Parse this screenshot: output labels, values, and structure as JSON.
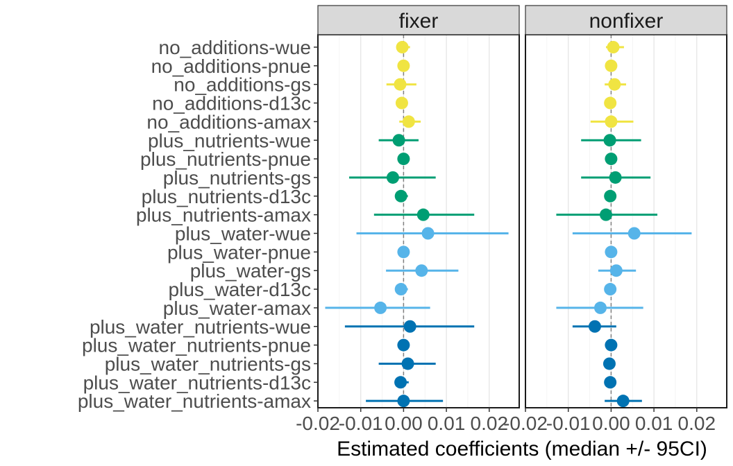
{
  "chart_data": {
    "type": "forest",
    "xlabel": "Estimated coefficients (median +/- 95CI)",
    "xlim": [
      -0.02,
      0.027
    ],
    "x_ticks": [
      -0.02,
      -0.01,
      0.0,
      0.01,
      0.02
    ],
    "x_tick_labels": [
      "-0.02",
      "-0.01",
      "0.00",
      "0.01",
      "0.02"
    ],
    "reference_line_x": 0,
    "grid": true,
    "panels": [
      "fixer",
      "nonfixer"
    ],
    "categories": [
      "no_additions-wue",
      "no_additions-pnue",
      "no_additions-gs",
      "no_additions-d13c",
      "no_additions-amax",
      "plus_nutrients-wue",
      "plus_nutrients-pnue",
      "plus_nutrients-gs",
      "plus_nutrients-d13c",
      "plus_nutrients-amax",
      "plus_water-wue",
      "plus_water-pnue",
      "plus_water-gs",
      "plus_water-d13c",
      "plus_water-amax",
      "plus_water_nutrients-wue",
      "plus_water_nutrients-pnue",
      "plus_water_nutrients-gs",
      "plus_water_nutrients-d13c",
      "plus_water_nutrients-amax"
    ],
    "group_colors": {
      "no_additions": "#F0E442",
      "plus_nutrients": "#009E73",
      "plus_water": "#56B4E9",
      "plus_water_nutrients": "#0072B2"
    },
    "series": [
      {
        "panel": "fixer",
        "median": [
          -0.0003,
          0.0,
          -0.0008,
          -0.0004,
          0.0012,
          -0.0011,
          0.0,
          -0.0025,
          -0.0006,
          0.0046,
          0.0057,
          0.0,
          0.0042,
          -0.0006,
          -0.0054,
          0.0015,
          0.0,
          0.001,
          -0.0007,
          0.0
        ],
        "lower": [
          -0.0015,
          -0.0008,
          -0.004,
          -0.0008,
          -0.001,
          -0.0058,
          -0.0006,
          -0.0127,
          -0.001,
          -0.0069,
          -0.011,
          -0.0008,
          -0.0041,
          -0.001,
          -0.0183,
          -0.0137,
          -0.0007,
          -0.0058,
          -0.0012,
          -0.0088
        ],
        "upper": [
          0.0015,
          0.0008,
          0.003,
          0.0008,
          0.004,
          0.0035,
          0.0006,
          0.0075,
          0.001,
          0.0165,
          0.0245,
          0.0008,
          0.0128,
          0.001,
          0.0062,
          0.0165,
          0.0007,
          0.0075,
          0.0012,
          0.0092
        ]
      },
      {
        "panel": "nonfixer",
        "median": [
          0.0005,
          0.0,
          0.0008,
          -0.0002,
          0.0,
          -0.0003,
          0.0,
          0.001,
          -0.0002,
          -0.0012,
          0.0054,
          0.0,
          0.0012,
          -0.0002,
          -0.0025,
          -0.0038,
          0.0,
          -0.0004,
          -0.0002,
          0.0028
        ],
        "lower": [
          -0.0012,
          -0.0006,
          -0.0015,
          -0.0006,
          -0.0048,
          -0.007,
          -0.0006,
          -0.007,
          -0.0006,
          -0.0128,
          -0.009,
          -0.0005,
          -0.003,
          -0.0006,
          -0.0128,
          -0.009,
          -0.0005,
          -0.0008,
          -0.0005,
          -0.0015
        ],
        "upper": [
          0.003,
          0.0006,
          0.0035,
          0.0006,
          0.0052,
          0.007,
          0.0006,
          0.0092,
          0.0006,
          0.0108,
          0.0188,
          0.0005,
          0.0058,
          0.0006,
          0.0075,
          0.0012,
          0.0005,
          0.0,
          0.0005,
          0.0072
        ]
      }
    ]
  }
}
